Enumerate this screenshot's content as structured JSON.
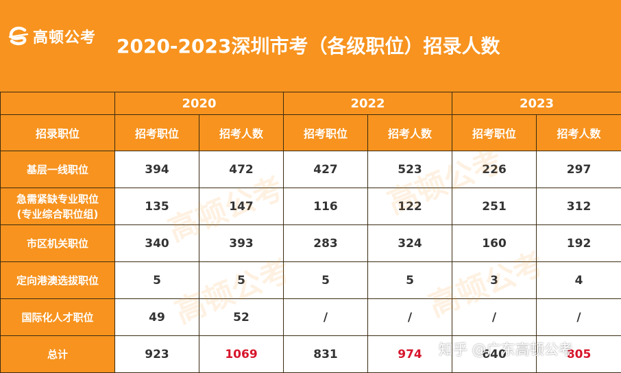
{
  "logo": {
    "text": "高顿公考",
    "icon": "gaodun-logo-icon"
  },
  "title": "2020-2023深圳市考（各级职位）招录人数",
  "years": [
    "2020",
    "2022",
    "2023"
  ],
  "column_label": "招录职位",
  "sub_headers": [
    "招考职位",
    "招考人数",
    "招考职位",
    "招考人数",
    "招考职位",
    "招考人数"
  ],
  "rows": [
    {
      "label": [
        "基层一线职位"
      ],
      "values": [
        "394",
        "472",
        "427",
        "523",
        "226",
        "297"
      ]
    },
    {
      "label": [
        "急需紧缺专业职位",
        "(专业综合职位组)"
      ],
      "values": [
        "135",
        "147",
        "116",
        "122",
        "251",
        "312"
      ]
    },
    {
      "label": [
        "市区机关职位"
      ],
      "values": [
        "340",
        "393",
        "283",
        "324",
        "160",
        "192"
      ]
    },
    {
      "label": [
        "定向港澳选拔职位"
      ],
      "values": [
        "5",
        "5",
        "5",
        "5",
        "3",
        "4"
      ]
    },
    {
      "label": [
        "国际化人才职位"
      ],
      "values": [
        "49",
        "52",
        "/",
        "/",
        "/",
        "/"
      ]
    }
  ],
  "total": {
    "label": "总计",
    "values": [
      "923",
      "1069",
      "831",
      "974",
      "640",
      "805"
    ]
  },
  "watermark": "高顿公考",
  "overlay": "知乎 @广东高顿公考",
  "colors": {
    "orange": "#f7931e",
    "red": "#d7152b",
    "border": "#3a2a10"
  }
}
